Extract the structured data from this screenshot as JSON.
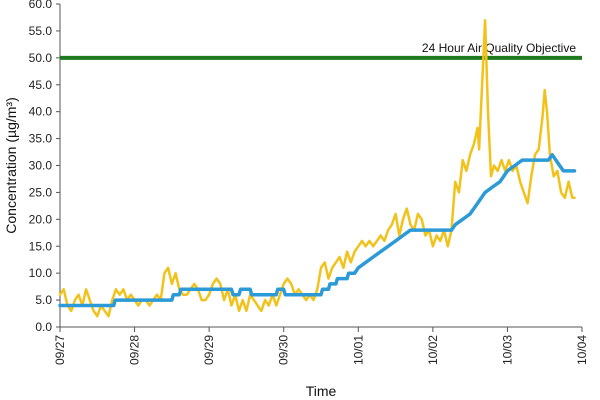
{
  "chart_data": {
    "type": "line",
    "title": "",
    "xlabel": "Time",
    "ylabel": "Concentration (µg/m³)",
    "ylim": [
      0,
      60
    ],
    "yticks": [
      "0.0",
      "5.0",
      "10.0",
      "15.0",
      "20.0",
      "25.0",
      "30.0",
      "35.0",
      "40.0",
      "45.0",
      "50.0",
      "55.0",
      "60.0"
    ],
    "xlim": [
      0,
      7
    ],
    "xticks": [
      {
        "value": 0,
        "label": "09/27"
      },
      {
        "value": 1,
        "label": "09/28"
      },
      {
        "value": 2,
        "label": "09/29"
      },
      {
        "value": 3,
        "label": "09/30"
      },
      {
        "value": 4,
        "label": "10/01"
      },
      {
        "value": 5,
        "label": "10/02"
      },
      {
        "value": 6,
        "label": "10/03"
      },
      {
        "value": 7,
        "label": "10/04"
      }
    ],
    "grid": false,
    "legend": "none",
    "reference_line": {
      "value": 50,
      "label": "24 Hour Air Quality Objective",
      "color": "#1f7a1f"
    },
    "series": [
      {
        "color": "#f2c21b",
        "points": [
          [
            0.0,
            6
          ],
          [
            0.05,
            7
          ],
          [
            0.1,
            4
          ],
          [
            0.15,
            3
          ],
          [
            0.2,
            5
          ],
          [
            0.25,
            6
          ],
          [
            0.3,
            4
          ],
          [
            0.35,
            7
          ],
          [
            0.4,
            5
          ],
          [
            0.45,
            3
          ],
          [
            0.5,
            2
          ],
          [
            0.55,
            4
          ],
          [
            0.6,
            3
          ],
          [
            0.65,
            2
          ],
          [
            0.7,
            5
          ],
          [
            0.75,
            7
          ],
          [
            0.8,
            6
          ],
          [
            0.85,
            7
          ],
          [
            0.9,
            5
          ],
          [
            0.95,
            6
          ],
          [
            1.0,
            5
          ],
          [
            1.05,
            4
          ],
          [
            1.1,
            5
          ],
          [
            1.15,
            5
          ],
          [
            1.2,
            4
          ],
          [
            1.25,
            5
          ],
          [
            1.3,
            6
          ],
          [
            1.35,
            5
          ],
          [
            1.4,
            10
          ],
          [
            1.45,
            11
          ],
          [
            1.5,
            8
          ],
          [
            1.55,
            10
          ],
          [
            1.6,
            7
          ],
          [
            1.65,
            6
          ],
          [
            1.7,
            6
          ],
          [
            1.75,
            7
          ],
          [
            1.8,
            8
          ],
          [
            1.85,
            7
          ],
          [
            1.9,
            5
          ],
          [
            1.95,
            5
          ],
          [
            2.0,
            6
          ],
          [
            2.05,
            8
          ],
          [
            2.1,
            9
          ],
          [
            2.15,
            8
          ],
          [
            2.2,
            5
          ],
          [
            2.25,
            7
          ],
          [
            2.3,
            4
          ],
          [
            2.35,
            6
          ],
          [
            2.4,
            3
          ],
          [
            2.45,
            5
          ],
          [
            2.5,
            3
          ],
          [
            2.55,
            6
          ],
          [
            2.6,
            5
          ],
          [
            2.65,
            4
          ],
          [
            2.7,
            3
          ],
          [
            2.75,
            5
          ],
          [
            2.8,
            4
          ],
          [
            2.85,
            6
          ],
          [
            2.9,
            4
          ],
          [
            2.95,
            6
          ],
          [
            3.0,
            8
          ],
          [
            3.05,
            9
          ],
          [
            3.1,
            8
          ],
          [
            3.15,
            6
          ],
          [
            3.2,
            7
          ],
          [
            3.25,
            6
          ],
          [
            3.3,
            5
          ],
          [
            3.35,
            6
          ],
          [
            3.4,
            5
          ],
          [
            3.45,
            7
          ],
          [
            3.5,
            11
          ],
          [
            3.55,
            12
          ],
          [
            3.6,
            9
          ],
          [
            3.65,
            11
          ],
          [
            3.7,
            12
          ],
          [
            3.75,
            13
          ],
          [
            3.8,
            11
          ],
          [
            3.85,
            14
          ],
          [
            3.9,
            12
          ],
          [
            3.95,
            14
          ],
          [
            4.0,
            15
          ],
          [
            4.05,
            16
          ],
          [
            4.1,
            15
          ],
          [
            4.15,
            16
          ],
          [
            4.2,
            15
          ],
          [
            4.25,
            16
          ],
          [
            4.3,
            17
          ],
          [
            4.35,
            16
          ],
          [
            4.4,
            18
          ],
          [
            4.45,
            19
          ],
          [
            4.5,
            21
          ],
          [
            4.55,
            17
          ],
          [
            4.6,
            20
          ],
          [
            4.65,
            22
          ],
          [
            4.7,
            19
          ],
          [
            4.75,
            18
          ],
          [
            4.8,
            21
          ],
          [
            4.85,
            20
          ],
          [
            4.9,
            17
          ],
          [
            4.95,
            18
          ],
          [
            5.0,
            15
          ],
          [
            5.05,
            17
          ],
          [
            5.1,
            16
          ],
          [
            5.15,
            18
          ],
          [
            5.2,
            15
          ],
          [
            5.25,
            18
          ],
          [
            5.3,
            27
          ],
          [
            5.35,
            25
          ],
          [
            5.4,
            31
          ],
          [
            5.45,
            29
          ],
          [
            5.5,
            32
          ],
          [
            5.55,
            34
          ],
          [
            5.6,
            37
          ],
          [
            5.62,
            33
          ],
          [
            5.66,
            45
          ],
          [
            5.7,
            57
          ],
          [
            5.74,
            40
          ],
          [
            5.78,
            28
          ],
          [
            5.82,
            30
          ],
          [
            5.87,
            29
          ],
          [
            5.92,
            31
          ],
          [
            5.97,
            29
          ],
          [
            6.02,
            31
          ],
          [
            6.07,
            29
          ],
          [
            6.12,
            30
          ],
          [
            6.17,
            27
          ],
          [
            6.22,
            25
          ],
          [
            6.27,
            23
          ],
          [
            6.32,
            28
          ],
          [
            6.37,
            32
          ],
          [
            6.42,
            33
          ],
          [
            6.47,
            39
          ],
          [
            6.5,
            44
          ],
          [
            6.53,
            40
          ],
          [
            6.57,
            32
          ],
          [
            6.62,
            28
          ],
          [
            6.67,
            29
          ],
          [
            6.72,
            25
          ],
          [
            6.77,
            24
          ],
          [
            6.82,
            27
          ],
          [
            6.87,
            24
          ],
          [
            6.9,
            24
          ]
        ]
      },
      {
        "color": "#2b9ad6",
        "points": [
          [
            0.0,
            4
          ],
          [
            0.72,
            4
          ],
          [
            0.74,
            5
          ],
          [
            1.5,
            5
          ],
          [
            1.52,
            6
          ],
          [
            1.6,
            6
          ],
          [
            1.62,
            7
          ],
          [
            2.3,
            7
          ],
          [
            2.32,
            6
          ],
          [
            2.4,
            6
          ],
          [
            2.42,
            7
          ],
          [
            2.55,
            7
          ],
          [
            2.57,
            6
          ],
          [
            2.9,
            6
          ],
          [
            2.92,
            7
          ],
          [
            3.0,
            7
          ],
          [
            3.02,
            6
          ],
          [
            3.5,
            6
          ],
          [
            3.52,
            7
          ],
          [
            3.6,
            7
          ],
          [
            3.62,
            8
          ],
          [
            3.7,
            8
          ],
          [
            3.72,
            9
          ],
          [
            3.85,
            9
          ],
          [
            3.87,
            10
          ],
          [
            3.95,
            10
          ],
          [
            4.0,
            11
          ],
          [
            4.1,
            12
          ],
          [
            4.2,
            13
          ],
          [
            4.3,
            14
          ],
          [
            4.4,
            15
          ],
          [
            4.5,
            16
          ],
          [
            4.6,
            17
          ],
          [
            4.7,
            18
          ],
          [
            5.0,
            18
          ],
          [
            5.25,
            18
          ],
          [
            5.3,
            19
          ],
          [
            5.4,
            20
          ],
          [
            5.5,
            21
          ],
          [
            5.6,
            23
          ],
          [
            5.7,
            25
          ],
          [
            5.8,
            26
          ],
          [
            5.9,
            27
          ],
          [
            6.0,
            29
          ],
          [
            6.1,
            30
          ],
          [
            6.2,
            31
          ],
          [
            6.4,
            31
          ],
          [
            6.5,
            31
          ],
          [
            6.55,
            31
          ],
          [
            6.6,
            32
          ],
          [
            6.7,
            30
          ],
          [
            6.75,
            29
          ],
          [
            6.9,
            29
          ]
        ]
      }
    ]
  }
}
